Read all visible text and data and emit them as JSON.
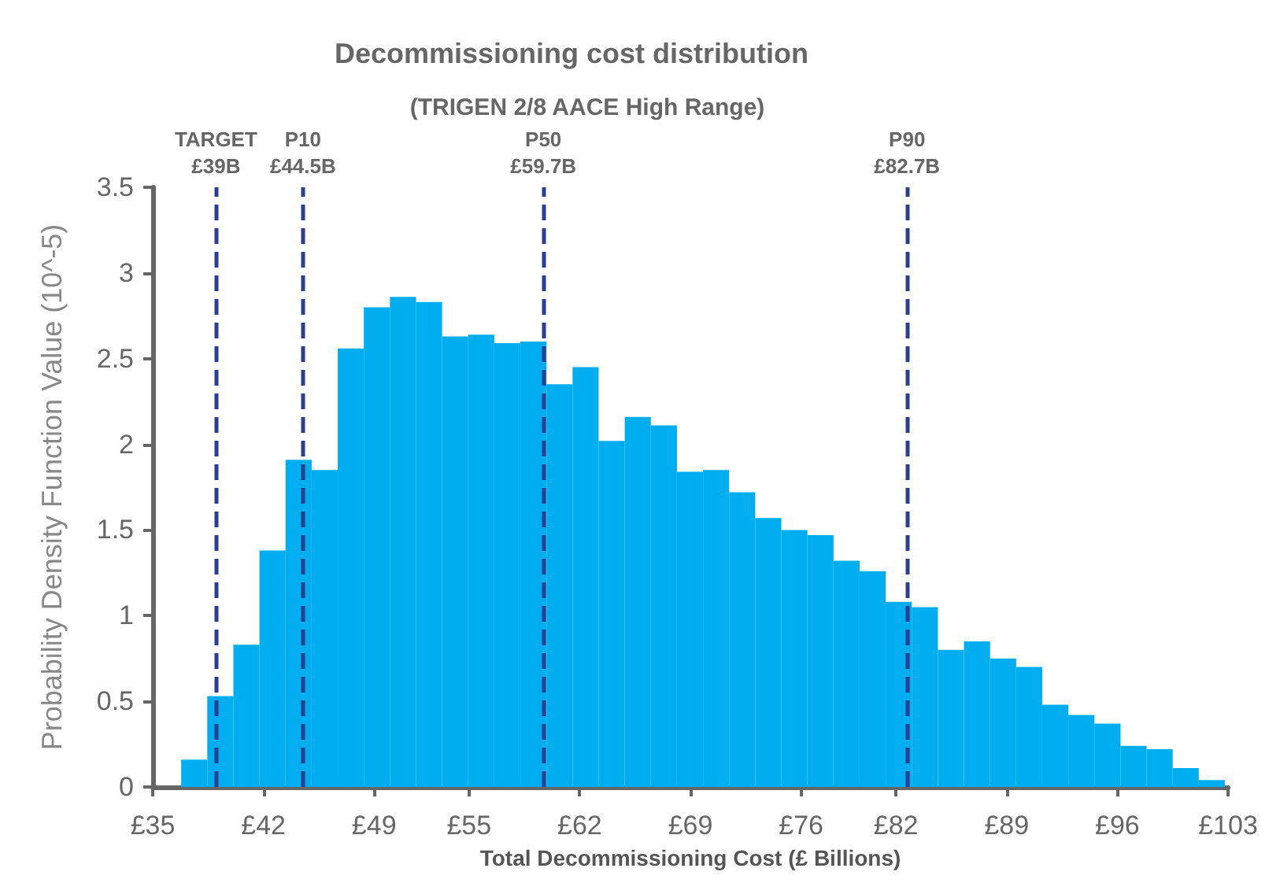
{
  "chart_data": {
    "type": "histogram",
    "title": "Decommissioning cost distribution",
    "subtitle": "(TRIGEN 2/8 AACE High Range)",
    "xlabel": "Total Decommissioning Cost (£ Billions)",
    "ylabel": "Probability Density Function Value (10^-5)",
    "bins": [
      36.8,
      38.45,
      40.1,
      41.75,
      43.4,
      45.05,
      46.7,
      48.35,
      50,
      51.65,
      53.3,
      54.95,
      56.6,
      58.25,
      59.9,
      61.55,
      63.2,
      64.85,
      66.5,
      68.15,
      69.8,
      71.45,
      73.1,
      74.75,
      76.4,
      78.05,
      79.7,
      81.35,
      83,
      84.65,
      86.3,
      87.95,
      89.6,
      91.25,
      92.9,
      94.55,
      96.2,
      97.85,
      99.5,
      101.15,
      102.8
    ],
    "values": [
      0.16,
      0.53,
      0.83,
      1.38,
      1.91,
      1.85,
      2.56,
      2.8,
      2.86,
      2.83,
      2.63,
      2.64,
      2.59,
      2.6,
      2.35,
      2.45,
      2.02,
      2.16,
      2.11,
      1.84,
      1.85,
      1.72,
      1.57,
      1.5,
      1.47,
      1.32,
      1.26,
      1.08,
      1.05,
      0.8,
      0.85,
      0.75,
      0.7,
      0.48,
      0.42,
      0.37,
      0.24,
      0.22,
      0.11,
      0.04
    ],
    "color": "#00aeef",
    "xlim": [
      35,
      103
    ],
    "xticks": [
      {
        "value": 35,
        "label": "£35"
      },
      {
        "value": 42,
        "label": "£42"
      },
      {
        "value": 49,
        "label": "£49"
      },
      {
        "value": 55,
        "label": "£55"
      },
      {
        "value": 62,
        "label": "£62"
      },
      {
        "value": 69,
        "label": "£69"
      },
      {
        "value": 76,
        "label": "£76"
      },
      {
        "value": 82,
        "label": "£82"
      },
      {
        "value": 89,
        "label": "£89"
      },
      {
        "value": 96,
        "label": "£96"
      },
      {
        "value": 103,
        "label": "£103"
      }
    ],
    "ylim": [
      0,
      3.5
    ],
    "yticks": [
      0,
      0.5,
      1,
      1.5,
      2,
      2.5,
      3,
      3.5
    ],
    "ref_lines": [
      {
        "axis": "x",
        "value": 39,
        "label": "TARGET\n£39B",
        "color": "#2a3f8f",
        "line_style": "dashed"
      },
      {
        "axis": "x",
        "value": 44.5,
        "label": "P10\n£44.5B",
        "color": "#2a3f8f",
        "line_style": "dashed"
      },
      {
        "axis": "x",
        "value": 59.7,
        "label": "P50\n£59.7B",
        "color": "#2a3f8f",
        "line_style": "dashed"
      },
      {
        "axis": "x",
        "value": 82.7,
        "label": "P90\n£82.7B",
        "color": "#2a3f8f",
        "line_style": "dashed"
      }
    ]
  }
}
